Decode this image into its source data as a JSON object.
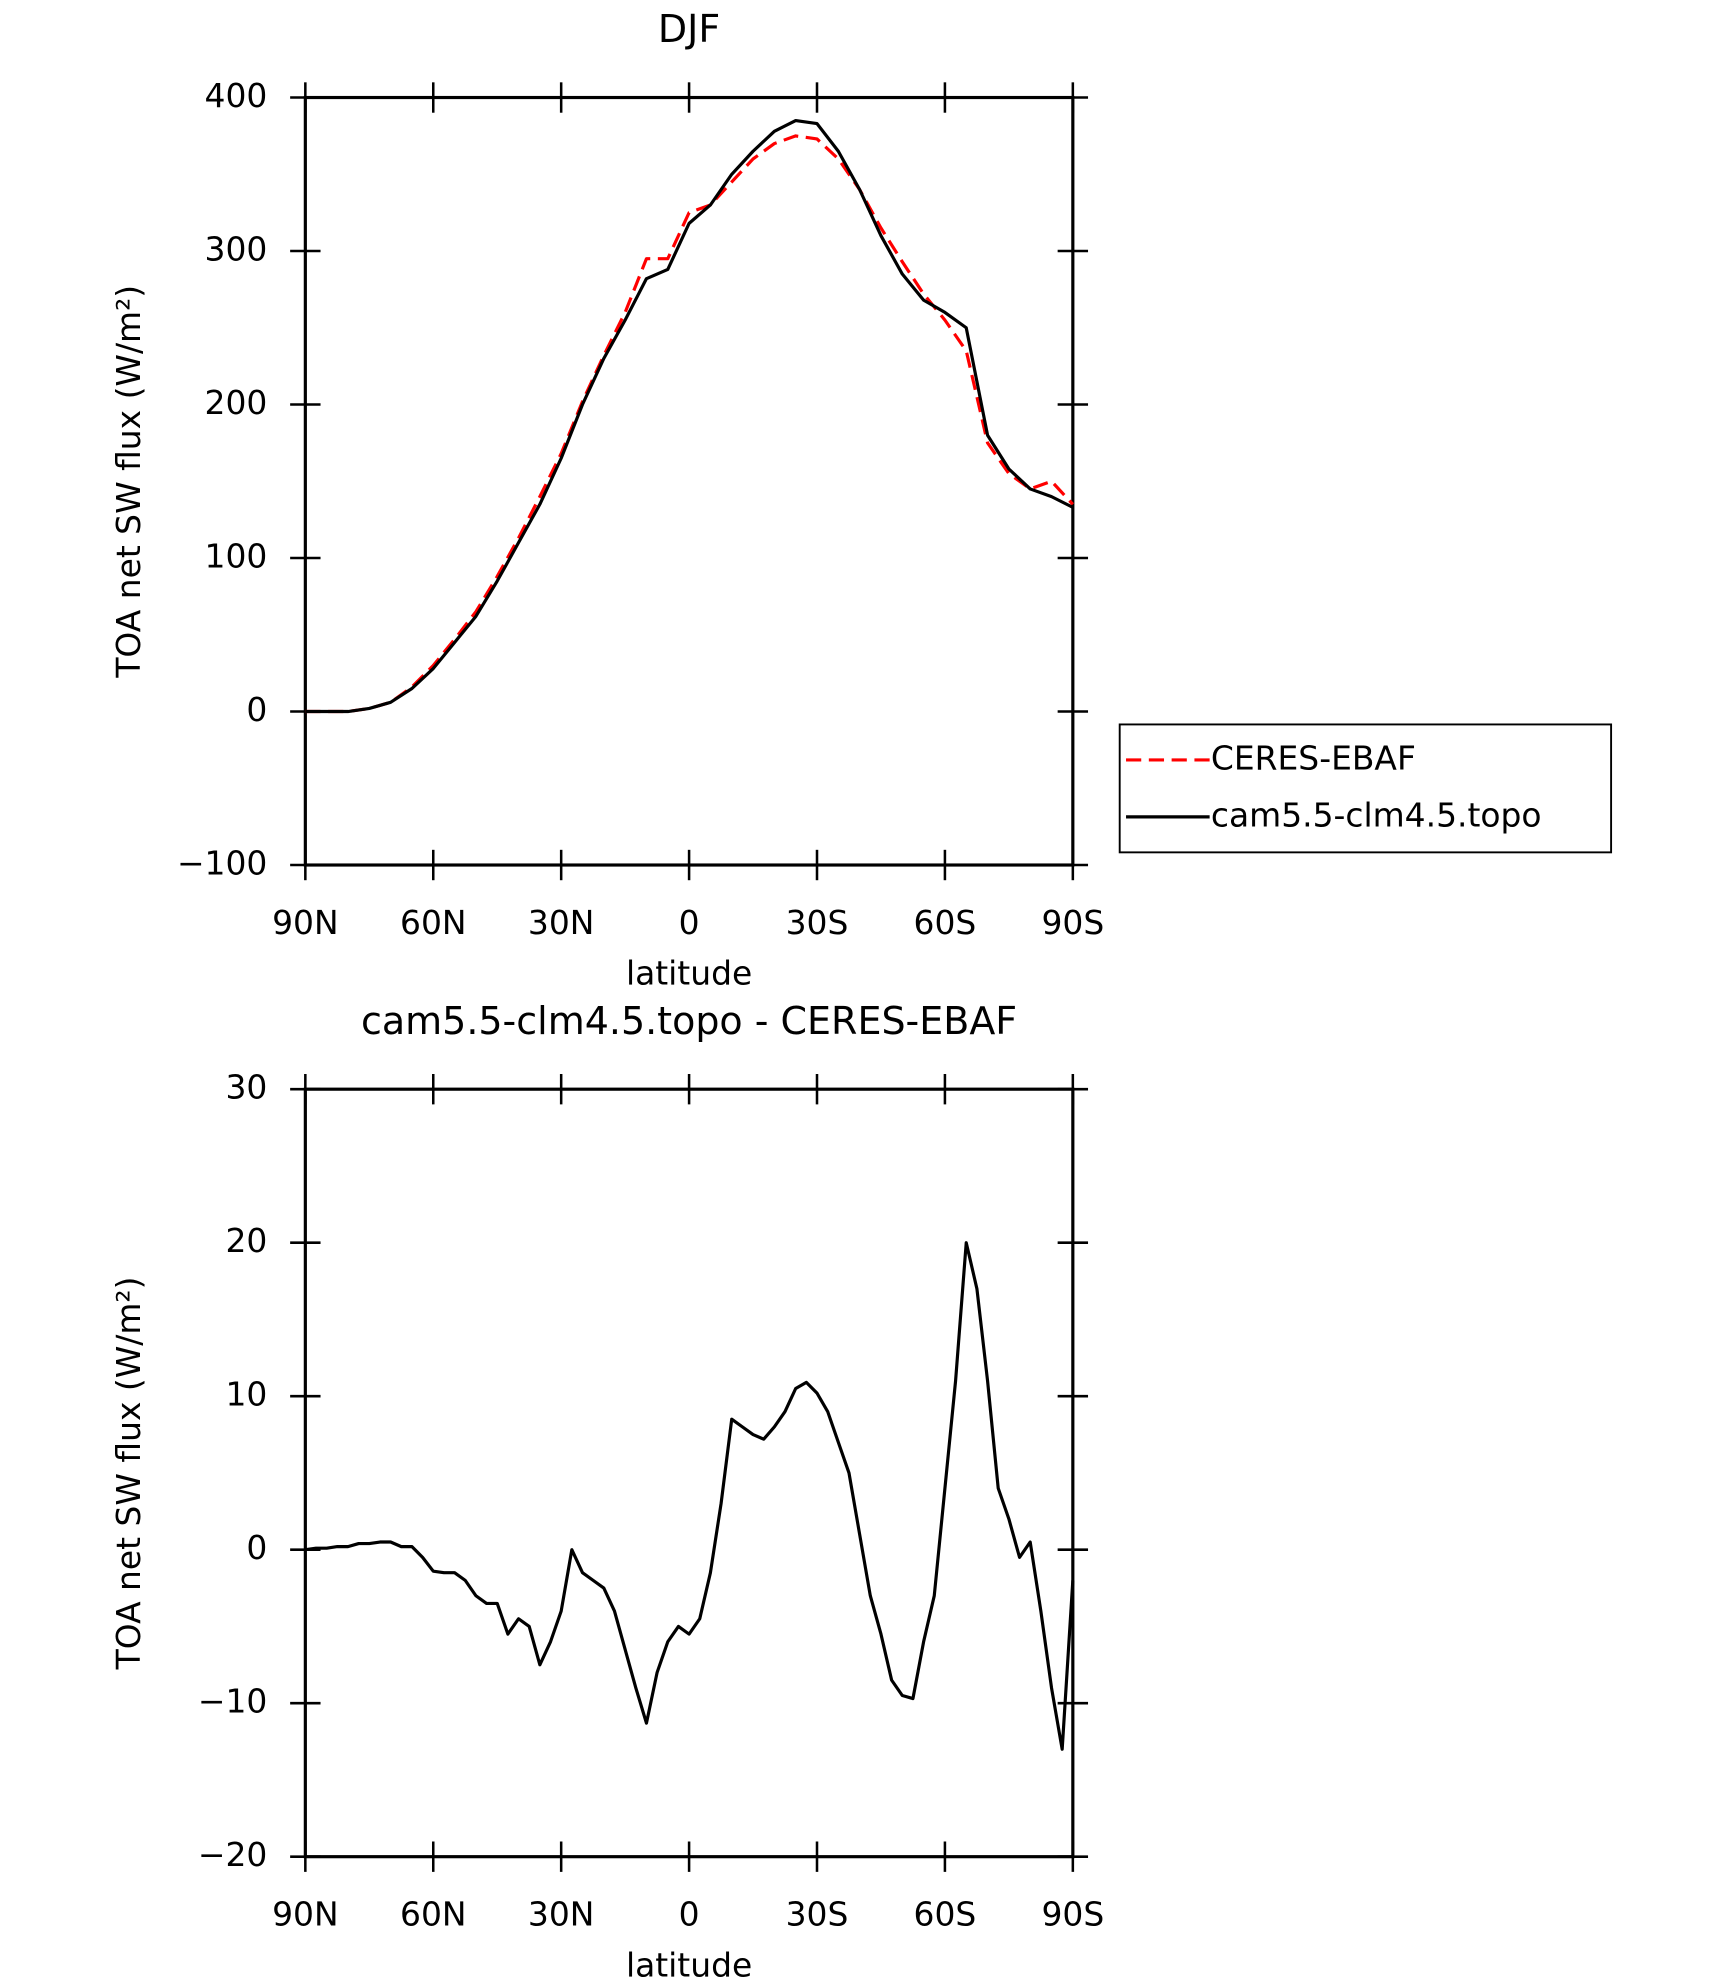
{
  "chart_data": [
    {
      "type": "line",
      "title": "DJF",
      "xlabel": "latitude",
      "ylabel": "TOA net SW flux (W/m²)",
      "x": [
        90,
        85,
        80,
        75,
        70,
        65,
        60,
        55,
        50,
        45,
        40,
        35,
        30,
        25,
        20,
        15,
        10,
        5,
        0,
        -5,
        -10,
        -15,
        -20,
        -25,
        -30,
        -35,
        -40,
        -45,
        -50,
        -55,
        -60,
        -65,
        -70,
        -75,
        -80,
        -85,
        -90
      ],
      "series": [
        {
          "name": "CERES-EBAF",
          "color": "#ff0000",
          "dashed": true,
          "values": [
            0,
            0,
            0,
            2,
            6,
            16,
            30,
            47,
            65,
            88,
            113,
            140,
            168,
            202,
            232,
            260,
            295,
            295,
            325,
            330,
            345,
            360,
            370,
            375,
            373,
            360,
            340,
            315,
            293,
            272,
            255,
            235,
            175,
            155,
            145,
            150,
            135
          ]
        },
        {
          "name": "cam5.5-clm4.5.topo",
          "color": "#000000",
          "dashed": false,
          "values": [
            0,
            0,
            0,
            2,
            6,
            15,
            28,
            45,
            62,
            85,
            110,
            135,
            165,
            200,
            230,
            255,
            282,
            288,
            318,
            330,
            350,
            365,
            378,
            385,
            383,
            365,
            340,
            310,
            285,
            268,
            260,
            250,
            180,
            158,
            145,
            140,
            133
          ]
        }
      ],
      "xlim": [
        90,
        -90
      ],
      "xticks": [
        {
          "value": 90,
          "label": "90N"
        },
        {
          "value": 60,
          "label": "60N"
        },
        {
          "value": 30,
          "label": "30N"
        },
        0,
        {
          "value": -30,
          "label": "30S"
        },
        {
          "value": -60,
          "label": "60S"
        },
        {
          "value": -90,
          "label": "90S"
        }
      ],
      "ylim": [
        -100,
        400
      ],
      "yticks": [
        {
          "value": -100,
          "label": "−100"
        },
        0,
        100,
        200,
        300,
        400
      ],
      "legend": "right"
    },
    {
      "type": "line",
      "title": "cam5.5-clm4.5.topo - CERES-EBAF",
      "xlabel": "latitude",
      "ylabel": "TOA net SW flux (W/m²)",
      "x": [
        90,
        87.5,
        85,
        82.5,
        80,
        77.5,
        75,
        72.5,
        70,
        67.5,
        65,
        62.5,
        60,
        57.5,
        55,
        52.5,
        50,
        47.5,
        45,
        42.5,
        40,
        37.5,
        35,
        32.5,
        30,
        27.5,
        25,
        22.5,
        20,
        17.5,
        15,
        12.5,
        10,
        7.5,
        5,
        2.5,
        0,
        -2.5,
        -5,
        -7.5,
        -10,
        -12.5,
        -15,
        -17.5,
        -20,
        -22.5,
        -25,
        -27.5,
        -30,
        -32.5,
        -35,
        -37.5,
        -40,
        -42.5,
        -45,
        -47.5,
        -50,
        -52.5,
        -55,
        -57.5,
        -60,
        -62.5,
        -65,
        -67.5,
        -70,
        -72.5,
        -75,
        -77.5,
        -80,
        -82.5,
        -85,
        -87.5,
        -90
      ],
      "series": [
        {
          "color": "#000000",
          "dashed": false,
          "values": [
            0,
            0.1,
            0.1,
            0.2,
            0.2,
            0.4,
            0.4,
            0.5,
            0.5,
            0.2,
            0.2,
            -0.5,
            -1.4,
            -1.5,
            -1.5,
            -2,
            -3,
            -3.5,
            -3.5,
            -5.5,
            -4.5,
            -5,
            -7.5,
            -6,
            -4,
            0,
            -1.5,
            -2,
            -2.5,
            -4,
            -6.5,
            -9,
            -11.3,
            -8,
            -6,
            -5,
            -5.5,
            -4.5,
            -1.5,
            3,
            8.5,
            8,
            7.5,
            7.2,
            8,
            9,
            10.5,
            10.9,
            10.2,
            9,
            7,
            5,
            1,
            -3,
            -5.5,
            -8.5,
            -9.5,
            -9.7,
            -6,
            -3,
            4,
            11,
            20,
            17,
            11,
            4,
            2,
            -0.5,
            0.5,
            -4,
            -9,
            -13,
            -2
          ]
        }
      ],
      "xlim": [
        90,
        -90
      ],
      "xticks": [
        {
          "value": 90,
          "label": "90N"
        },
        {
          "value": 60,
          "label": "60N"
        },
        {
          "value": 30,
          "label": "30N"
        },
        0,
        {
          "value": -30,
          "label": "30S"
        },
        {
          "value": -60,
          "label": "60S"
        },
        {
          "value": -90,
          "label": "90S"
        }
      ],
      "ylim": [
        -20,
        30
      ],
      "yticks": [
        {
          "value": -20,
          "label": "−20"
        },
        {
          "value": -10,
          "label": "−10"
        },
        0,
        10,
        20,
        30
      ]
    }
  ]
}
